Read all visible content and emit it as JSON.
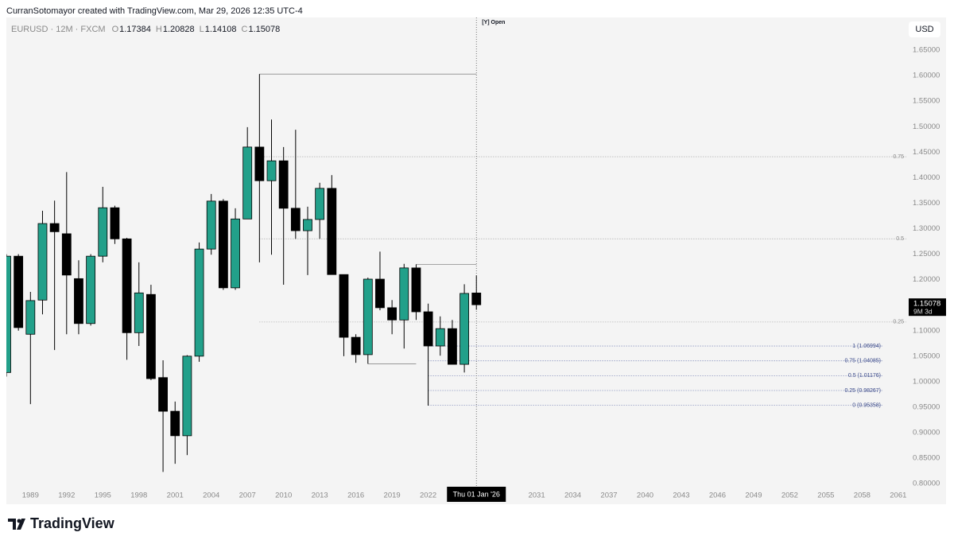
{
  "header": {
    "text": "CurranSotomayor created with TradingView.com, Mar 29, 2026 12:35 UTC-4"
  },
  "brand": "TradingView",
  "chart_data": {
    "type": "candlestick",
    "symbol": "EURUSD · 12M · FXCM",
    "legend_letters": [
      "O",
      "H",
      "L",
      "C"
    ],
    "x": [
      1987,
      1988,
      1989,
      1990,
      1991,
      1992,
      1993,
      1994,
      1995,
      1996,
      1997,
      1998,
      1999,
      2000,
      2001,
      2002,
      2003,
      2004,
      2005,
      2006,
      2007,
      2008,
      2009,
      2010,
      2011,
      2012,
      2013,
      2014,
      2015,
      2016,
      2017,
      2018,
      2019,
      2020,
      2021,
      2022,
      2023,
      2024,
      2025,
      2026
    ],
    "open": [
      1.018,
      1.246,
      1.093,
      1.16,
      1.31,
      1.29,
      1.202,
      1.114,
      1.246,
      1.341,
      1.28,
      1.096,
      1.171,
      1.008,
      0.942,
      0.894,
      1.05,
      1.26,
      1.354,
      1.184,
      1.319,
      1.46,
      1.394,
      1.433,
      1.34,
      1.296,
      1.318,
      1.379,
      1.21,
      1.087,
      1.053,
      1.201,
      1.145,
      1.121,
      1.223,
      1.137,
      1.07,
      1.104,
      1.034,
      1.17384
    ],
    "high": [
      1.25,
      1.25,
      1.176,
      1.335,
      1.355,
      1.411,
      1.238,
      1.25,
      1.382,
      1.345,
      1.282,
      1.234,
      1.19,
      1.042,
      0.961,
      1.052,
      1.273,
      1.368,
      1.358,
      1.34,
      1.499,
      1.603,
      1.514,
      1.46,
      1.494,
      1.343,
      1.39,
      1.405,
      1.21,
      1.093,
      1.204,
      1.255,
      1.16,
      1.231,
      1.23,
      1.153,
      1.128,
      1.121,
      1.191,
      1.20828
    ],
    "low": [
      1.01,
      1.1,
      0.956,
      1.132,
      1.062,
      1.093,
      1.093,
      1.11,
      1.234,
      1.27,
      1.043,
      1.07,
      1.003,
      0.823,
      0.839,
      0.856,
      1.039,
      1.249,
      1.18,
      1.18,
      1.319,
      1.234,
      1.249,
      1.19,
      1.28,
      1.209,
      1.28,
      1.21,
      1.05,
      1.037,
      1.035,
      1.14,
      1.093,
      1.065,
      1.121,
      0.953,
      1.051,
      1.034,
      1.018,
      1.14108
    ],
    "close": [
      1.246,
      1.106,
      1.159,
      1.31,
      1.294,
      1.209,
      1.114,
      1.246,
      1.341,
      1.28,
      1.096,
      1.174,
      1.006,
      0.942,
      0.894,
      1.05,
      1.26,
      1.354,
      1.184,
      1.319,
      1.46,
      1.394,
      1.433,
      1.34,
      1.296,
      1.318,
      1.379,
      1.21,
      1.087,
      1.053,
      1.201,
      1.145,
      1.121,
      1.223,
      1.137,
      1.07,
      1.104,
      1.034,
      1.173,
      1.15078
    ],
    "up_color": "#22a08a",
    "down_color": "#000000",
    "xlim": [
      1987,
      2062
    ],
    "ylim": [
      0.794,
      1.714
    ],
    "xticks": [
      1989,
      1992,
      1995,
      1998,
      2001,
      2004,
      2007,
      2010,
      2013,
      2016,
      2019,
      2022,
      2031,
      2034,
      2037,
      2040,
      2043,
      2046,
      2049,
      2052,
      2055,
      2058,
      2061
    ],
    "yticks": [
      {
        "value": 0.8,
        "label": "0.80000"
      },
      {
        "value": 0.85,
        "label": "0.85000"
      },
      {
        "value": 0.9,
        "label": "0.90000"
      },
      {
        "value": 0.95,
        "label": "0.95000"
      },
      {
        "value": 1.0,
        "label": "1.00000"
      },
      {
        "value": 1.05,
        "label": "1.05000"
      },
      {
        "value": 1.1,
        "label": "1.10000"
      },
      {
        "value": 1.15,
        "label": "1.15000"
      },
      {
        "value": 1.2,
        "label": "1.20000"
      },
      {
        "value": 1.25,
        "label": "1.25000"
      },
      {
        "value": 1.3,
        "label": "1.30000"
      },
      {
        "value": 1.35,
        "label": "1.35000"
      },
      {
        "value": 1.4,
        "label": "1.40000"
      },
      {
        "value": 1.45,
        "label": "1.45000"
      },
      {
        "value": 1.5,
        "label": "1.50000"
      },
      {
        "value": 1.55,
        "label": "1.55000"
      },
      {
        "value": 1.6,
        "label": "1.60000"
      },
      {
        "value": 1.65,
        "label": "1.65000"
      }
    ],
    "currency": "USD",
    "crosshair": {
      "x": 2026,
      "label": "Thu 01 Jan '26"
    },
    "open_marker": "[Y] Open",
    "countdown": "9M 3d",
    "upper_levels": [
      {
        "ratio": 0.75,
        "value": 1.441
      },
      {
        "ratio": 0.5,
        "value": 1.28
      },
      {
        "ratio": 0.25,
        "value": 1.117
      }
    ],
    "lower_levels": [
      {
        "label": "1 (1.06994)",
        "value": 1.06994
      },
      {
        "label": "0.75 (1.04085)",
        "value": 1.04085
      },
      {
        "label": "0.5 (1.01176)",
        "value": 1.01176
      },
      {
        "label": "0.25 (0.98267)",
        "value": 0.98267
      },
      {
        "label": "0 (0.95358)",
        "value": 0.95358
      }
    ],
    "trendlines": [
      {
        "x": [
          2008,
          2026
        ],
        "y": [
          1.603,
          1.603
        ]
      },
      {
        "x": [
          2021,
          2026
        ],
        "y": [
          1.23,
          1.23
        ]
      },
      {
        "x": [
          2017,
          2021
        ],
        "y": [
          1.035,
          1.035
        ]
      },
      {
        "x": [
          2022,
          2022
        ],
        "y": [
          1.07,
          0.953
        ]
      }
    ]
  }
}
